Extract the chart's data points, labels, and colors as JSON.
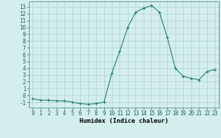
{
  "x": [
    0,
    1,
    2,
    3,
    4,
    5,
    6,
    7,
    8,
    9,
    10,
    11,
    12,
    13,
    14,
    15,
    16,
    17,
    18,
    19,
    20,
    21,
    22,
    23
  ],
  "y": [
    -0.5,
    -0.7,
    -0.7,
    -0.8,
    -0.8,
    -1.0,
    -1.2,
    -1.3,
    -1.2,
    -1.0,
    3.3,
    6.5,
    10.0,
    12.2,
    12.8,
    13.2,
    12.2,
    8.5,
    4.0,
    2.8,
    2.5,
    2.3,
    3.5,
    3.8
  ],
  "xlabel": "Humidex (Indice chaleur)",
  "line_color": "#1a7a6e",
  "marker": "+",
  "bg_color": "#d4eeee",
  "grid_color": "#aacfcf",
  "ylim": [
    -1.8,
    13.8
  ],
  "xlim": [
    -0.5,
    23.5
  ],
  "yticks": [
    -1,
    0,
    1,
    2,
    3,
    4,
    5,
    6,
    7,
    8,
    9,
    10,
    11,
    12,
    13
  ],
  "xticks": [
    0,
    1,
    2,
    3,
    4,
    5,
    6,
    7,
    8,
    9,
    10,
    11,
    12,
    13,
    14,
    15,
    16,
    17,
    18,
    19,
    20,
    21,
    22,
    23
  ],
  "figsize": [
    3.2,
    2.0
  ],
  "dpi": 100,
  "tick_fontsize": 5.5,
  "xlabel_fontsize": 6.5
}
